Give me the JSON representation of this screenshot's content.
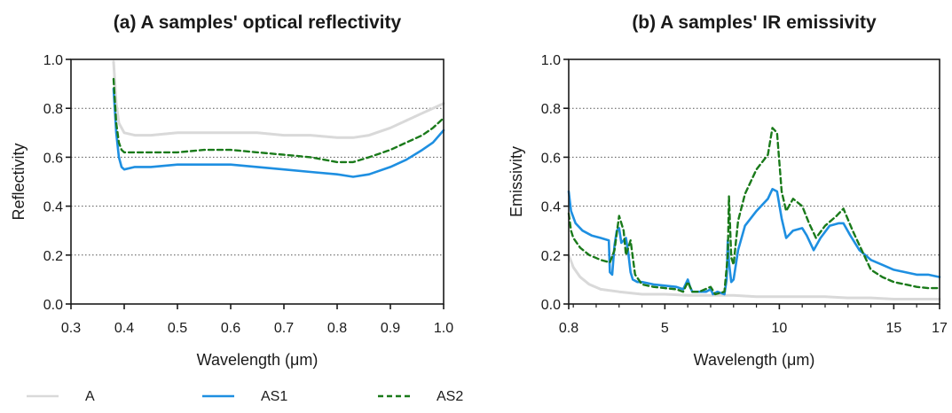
{
  "colors": {
    "A": "#d9d9d9",
    "AS1": "#1e8fe1",
    "AS2": "#1a7a1a",
    "axis": "#1a1a1a",
    "grid": "#555555"
  },
  "legend": [
    {
      "name": "A",
      "style": "solid",
      "color": "#d9d9d9"
    },
    {
      "name": "AS1",
      "style": "solid",
      "color": "#1e8fe1"
    },
    {
      "name": "AS2",
      "style": "dashed",
      "color": "#1a7a1a"
    }
  ],
  "chart_data": [
    {
      "type": "line",
      "title": "(a) A samples' optical reflectivity",
      "xlabel": "Wavelength (μm)",
      "ylabel": "Reflectivity",
      "xlim": [
        0.3,
        1.0
      ],
      "ylim": [
        0.0,
        1.0
      ],
      "xticks": [
        0.3,
        0.4,
        0.5,
        0.6,
        0.7,
        0.8,
        0.9,
        1.0
      ],
      "xtick_labels": [
        "0.3",
        "0.4",
        "0.5",
        "0.6",
        "0.7",
        "0.8",
        "0.9",
        "1.0"
      ],
      "yticks": [
        0.0,
        0.2,
        0.4,
        0.6,
        0.8,
        1.0
      ],
      "ytick_labels": [
        "0.0",
        "0.2",
        "0.4",
        "0.6",
        "0.8",
        "1.0"
      ],
      "grid": "horizontal dotted",
      "series": [
        {
          "name": "A",
          "style": "solid",
          "x": [
            0.38,
            0.385,
            0.39,
            0.4,
            0.42,
            0.45,
            0.5,
            0.55,
            0.6,
            0.65,
            0.7,
            0.75,
            0.8,
            0.83,
            0.86,
            0.9,
            0.93,
            0.96,
            0.98,
            1.0
          ],
          "y": [
            0.99,
            0.82,
            0.74,
            0.7,
            0.69,
            0.69,
            0.7,
            0.7,
            0.7,
            0.7,
            0.69,
            0.69,
            0.68,
            0.68,
            0.69,
            0.72,
            0.75,
            0.78,
            0.8,
            0.82
          ]
        },
        {
          "name": "AS1",
          "style": "solid",
          "x": [
            0.38,
            0.385,
            0.39,
            0.395,
            0.4,
            0.42,
            0.45,
            0.5,
            0.55,
            0.6,
            0.65,
            0.7,
            0.75,
            0.8,
            0.83,
            0.86,
            0.9,
            0.93,
            0.96,
            0.98,
            1.0
          ],
          "y": [
            0.88,
            0.7,
            0.6,
            0.56,
            0.55,
            0.56,
            0.56,
            0.57,
            0.57,
            0.57,
            0.56,
            0.55,
            0.54,
            0.53,
            0.52,
            0.53,
            0.56,
            0.59,
            0.63,
            0.66,
            0.71
          ]
        },
        {
          "name": "AS2",
          "style": "dashed",
          "x": [
            0.38,
            0.385,
            0.39,
            0.395,
            0.4,
            0.42,
            0.45,
            0.5,
            0.55,
            0.6,
            0.65,
            0.7,
            0.75,
            0.8,
            0.83,
            0.86,
            0.9,
            0.93,
            0.96,
            0.98,
            1.0
          ],
          "y": [
            0.92,
            0.74,
            0.66,
            0.63,
            0.62,
            0.62,
            0.62,
            0.62,
            0.63,
            0.63,
            0.62,
            0.61,
            0.6,
            0.58,
            0.58,
            0.6,
            0.63,
            0.66,
            0.69,
            0.72,
            0.76
          ]
        }
      ]
    },
    {
      "type": "line",
      "title": "(b) A samples' IR emissivity",
      "xlabel": "Wavelength (μm)",
      "ylabel": "Emissivity",
      "xlim": [
        0.8,
        17
      ],
      "ylim": [
        0.0,
        1.0
      ],
      "xticks": [
        0.8,
        5,
        10,
        15,
        17
      ],
      "xtick_labels": [
        "0.8",
        "5",
        "10",
        "15",
        "17"
      ],
      "yticks": [
        0.0,
        0.2,
        0.4,
        0.6,
        0.8,
        1.0
      ],
      "ytick_labels": [
        "0.0",
        "0.2",
        "0.4",
        "0.6",
        "0.8",
        "1.0"
      ],
      "grid": "horizontal dotted",
      "series": [
        {
          "name": "A",
          "style": "solid",
          "x": [
            0.8,
            1.0,
            1.3,
            1.7,
            2.2,
            3.0,
            4.0,
            5.0,
            6.0,
            7.0,
            8.0,
            9.0,
            10.0,
            11.0,
            12.0,
            13.0,
            14.0,
            15.0,
            16.0,
            17.0
          ],
          "y": [
            0.2,
            0.15,
            0.11,
            0.08,
            0.06,
            0.05,
            0.04,
            0.04,
            0.035,
            0.035,
            0.035,
            0.03,
            0.03,
            0.03,
            0.03,
            0.025,
            0.025,
            0.02,
            0.02,
            0.02
          ]
        },
        {
          "name": "AS1",
          "style": "solid",
          "x": [
            0.8,
            0.9,
            1.1,
            1.4,
            1.8,
            2.2,
            2.55,
            2.6,
            2.7,
            2.8,
            2.9,
            3.0,
            3.1,
            3.3,
            3.4,
            3.5,
            3.6,
            3.8,
            4.0,
            4.5,
            5.0,
            5.5,
            5.8,
            6.0,
            6.1,
            6.2,
            6.5,
            6.8,
            7.0,
            7.1,
            7.3,
            7.6,
            7.7,
            7.75,
            7.8,
            7.9,
            8.0,
            8.2,
            8.5,
            9.0,
            9.5,
            9.7,
            9.9,
            10.1,
            10.3,
            10.6,
            11.0,
            11.2,
            11.5,
            11.8,
            12.2,
            12.6,
            12.8,
            13.1,
            13.5,
            14.0,
            14.5,
            15.0,
            15.5,
            16.0,
            16.5,
            17.0
          ],
          "y": [
            0.46,
            0.38,
            0.33,
            0.3,
            0.28,
            0.27,
            0.26,
            0.13,
            0.12,
            0.24,
            0.3,
            0.31,
            0.25,
            0.27,
            0.21,
            0.13,
            0.1,
            0.09,
            0.09,
            0.08,
            0.075,
            0.07,
            0.06,
            0.1,
            0.07,
            0.05,
            0.05,
            0.05,
            0.06,
            0.04,
            0.05,
            0.04,
            0.1,
            0.26,
            0.17,
            0.09,
            0.1,
            0.22,
            0.32,
            0.38,
            0.43,
            0.47,
            0.46,
            0.35,
            0.27,
            0.3,
            0.31,
            0.28,
            0.22,
            0.27,
            0.32,
            0.33,
            0.33,
            0.28,
            0.22,
            0.18,
            0.16,
            0.14,
            0.13,
            0.12,
            0.12,
            0.11
          ]
        },
        {
          "name": "AS2",
          "style": "dashed",
          "x": [
            0.8,
            0.9,
            1.0,
            1.3,
            1.7,
            2.2,
            2.6,
            2.8,
            3.0,
            3.2,
            3.3,
            3.5,
            3.7,
            4.0,
            4.5,
            5.0,
            5.5,
            5.8,
            6.0,
            6.2,
            6.5,
            7.0,
            7.2,
            7.6,
            7.75,
            7.8,
            7.9,
            8.0,
            8.2,
            8.5,
            9.0,
            9.5,
            9.7,
            9.9,
            10.1,
            10.3,
            10.6,
            11.0,
            11.3,
            11.6,
            12.0,
            12.5,
            12.8,
            13.2,
            13.6,
            14.0,
            14.5,
            15.0,
            15.5,
            16.0,
            16.5,
            17.0
          ],
          "y": [
            0.37,
            0.3,
            0.27,
            0.23,
            0.2,
            0.18,
            0.17,
            0.22,
            0.36,
            0.3,
            0.2,
            0.26,
            0.12,
            0.08,
            0.07,
            0.065,
            0.06,
            0.05,
            0.09,
            0.05,
            0.05,
            0.07,
            0.04,
            0.05,
            0.2,
            0.44,
            0.19,
            0.16,
            0.34,
            0.45,
            0.55,
            0.61,
            0.72,
            0.7,
            0.46,
            0.38,
            0.43,
            0.4,
            0.33,
            0.27,
            0.32,
            0.36,
            0.39,
            0.3,
            0.22,
            0.14,
            0.11,
            0.09,
            0.08,
            0.07,
            0.065,
            0.065
          ]
        }
      ]
    }
  ]
}
